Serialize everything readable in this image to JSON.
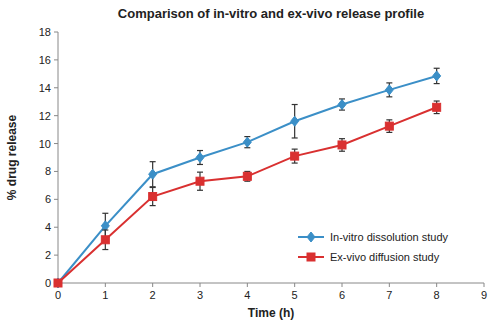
{
  "chart_data": {
    "type": "line",
    "title": "Comparison of in-vitro and ex-vivo release profile",
    "x_label": "Time (h)",
    "y_label": "% drug release",
    "x": [
      0,
      1,
      2,
      3,
      4,
      5,
      6,
      7,
      8
    ],
    "series": [
      {
        "name": "In-vitro dissolution study",
        "color": "#3B8FC7",
        "marker": "diamond",
        "values": [
          0,
          4.1,
          7.8,
          9.0,
          10.1,
          11.6,
          12.8,
          13.85,
          14.85
        ],
        "errors": [
          0,
          0.9,
          0.9,
          0.5,
          0.4,
          1.2,
          0.4,
          0.5,
          0.55
        ]
      },
      {
        "name": "Ex-vivo diffusion study",
        "color": "#D93030",
        "marker": "square",
        "values": [
          0,
          3.1,
          6.2,
          7.3,
          7.65,
          9.1,
          9.9,
          11.25,
          12.6
        ],
        "errors": [
          0,
          0.7,
          0.65,
          0.65,
          0.35,
          0.5,
          0.45,
          0.45,
          0.45
        ]
      }
    ],
    "xlim": [
      0,
      9
    ],
    "ylim": [
      0,
      18
    ],
    "xticks": [
      0,
      1,
      2,
      3,
      4,
      5,
      6,
      7,
      8,
      9
    ],
    "yticks": [
      0,
      2,
      4,
      6,
      8,
      10,
      12,
      14,
      16,
      18
    ],
    "grid": false,
    "legend": "lower right"
  }
}
